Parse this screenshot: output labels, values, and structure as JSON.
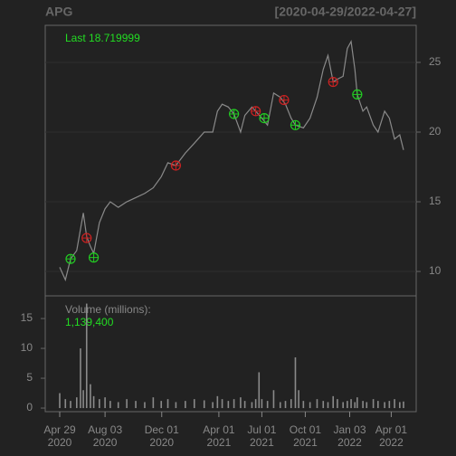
{
  "chart_data": [
    {
      "type": "line",
      "title": "APG",
      "subtitle": "[2020-04-29/2022-04-27]",
      "annotation": "Last 18.719999",
      "x": [
        "2020-04-29",
        "2020-05-11",
        "2020-05-22",
        "2020-06-04",
        "2020-06-18",
        "2020-06-25",
        "2020-07-03",
        "2020-07-10",
        "2020-07-22",
        "2020-08-03",
        "2020-08-14",
        "2020-08-31",
        "2020-09-18",
        "2020-10-07",
        "2020-10-26",
        "2020-11-13",
        "2020-11-30",
        "2020-12-14",
        "2020-12-31",
        "2021-01-20",
        "2021-02-08",
        "2021-03-01",
        "2021-03-19",
        "2021-03-29",
        "2021-04-08",
        "2021-04-21",
        "2021-05-03",
        "2021-05-17",
        "2021-05-26",
        "2021-06-10",
        "2021-06-18",
        "2021-07-01",
        "2021-07-13",
        "2021-07-26",
        "2021-08-09",
        "2021-08-20",
        "2021-09-01",
        "2021-09-10",
        "2021-09-27",
        "2021-10-11",
        "2021-10-26",
        "2021-11-08",
        "2021-11-18",
        "2021-11-29",
        "2021-12-08",
        "2021-12-20",
        "2021-12-29",
        "2022-01-06",
        "2022-01-14",
        "2022-01-19",
        "2022-01-31",
        "2022-02-08",
        "2022-02-22",
        "2022-03-04",
        "2022-03-18",
        "2022-03-28",
        "2022-04-08",
        "2022-04-19",
        "2022-04-27"
      ],
      "series": [
        {
          "name": "APG",
          "color": "#8a8a8a",
          "values": [
            10.3,
            9.4,
            10.9,
            11.5,
            14.2,
            12.5,
            11.8,
            11.3,
            13.5,
            14.5,
            15.0,
            14.6,
            15.0,
            15.3,
            15.6,
            16.0,
            16.8,
            17.8,
            17.6,
            18.5,
            19.2,
            20.0,
            20.0,
            21.5,
            22.0,
            21.8,
            21.3,
            20.0,
            21.2,
            21.8,
            21.5,
            21.0,
            20.5,
            22.8,
            22.5,
            22.0,
            21.0,
            20.5,
            20.3,
            21.0,
            22.5,
            24.5,
            25.5,
            23.6,
            23.8,
            24.0,
            26.0,
            26.5,
            24.5,
            22.7,
            21.5,
            21.8,
            20.5,
            20.0,
            21.5,
            21.0,
            19.5,
            19.8,
            18.72
          ]
        }
      ],
      "signals": [
        {
          "color": "#22cc22",
          "x": [
            "2020-05-22",
            "2020-07-10",
            "2021-05-03",
            "2021-07-06",
            "2021-09-10",
            "2022-01-19"
          ],
          "values": [
            10.9,
            11.0,
            21.3,
            21.0,
            20.5,
            22.7
          ]
        },
        {
          "color": "#cc2222",
          "x": [
            "2020-06-25",
            "2020-12-31",
            "2021-06-18",
            "2021-08-17",
            "2021-11-29"
          ],
          "values": [
            12.4,
            17.6,
            21.5,
            22.3,
            23.6
          ]
        }
      ],
      "xlim": [
        "2020-04-29",
        "2022-04-27"
      ],
      "ylim": [
        8.25,
        27.66
      ],
      "yticks": [
        10,
        15,
        20,
        25
      ],
      "grid": true
    },
    {
      "type": "bar",
      "title": "Volume (millions):",
      "annotation": "1,139,400",
      "color": "#8a8a8a",
      "x": [
        "2020-04-29",
        "2020-05-11",
        "2020-05-22",
        "2020-06-04",
        "2020-06-12",
        "2020-06-18",
        "2020-06-25",
        "2020-07-03",
        "2020-07-10",
        "2020-07-22",
        "2020-08-03",
        "2020-08-14",
        "2020-08-31",
        "2020-09-18",
        "2020-10-07",
        "2020-10-26",
        "2020-11-13",
        "2020-11-30",
        "2020-12-14",
        "2020-12-31",
        "2021-01-20",
        "2021-02-08",
        "2021-03-01",
        "2021-03-19",
        "2021-03-29",
        "2021-04-08",
        "2021-04-21",
        "2021-05-03",
        "2021-05-17",
        "2021-05-26",
        "2021-06-10",
        "2021-06-18",
        "2021-06-25",
        "2021-07-01",
        "2021-07-13",
        "2021-07-26",
        "2021-08-09",
        "2021-08-20",
        "2021-09-01",
        "2021-09-10",
        "2021-09-17",
        "2021-09-27",
        "2021-10-11",
        "2021-10-26",
        "2021-11-08",
        "2021-11-18",
        "2021-11-29",
        "2021-12-08",
        "2021-12-20",
        "2021-12-29",
        "2022-01-06",
        "2022-01-14",
        "2022-01-19",
        "2022-01-31",
        "2022-02-08",
        "2022-02-22",
        "2022-03-04",
        "2022-03-18",
        "2022-03-28",
        "2022-04-08",
        "2022-04-19",
        "2022-04-27"
      ],
      "values": [
        2.5,
        1.5,
        1.2,
        1.8,
        10.0,
        3.0,
        17.5,
        4.0,
        2.0,
        1.5,
        1.8,
        1.2,
        1.0,
        1.5,
        1.2,
        1.0,
        1.8,
        1.2,
        1.5,
        1.0,
        1.2,
        1.5,
        1.3,
        1.0,
        2.0,
        1.5,
        1.2,
        1.5,
        1.8,
        1.2,
        1.0,
        1.5,
        6.0,
        1.5,
        1.2,
        3.0,
        1.0,
        1.2,
        1.5,
        8.5,
        3.0,
        1.2,
        1.0,
        1.5,
        1.2,
        1.0,
        2.0,
        1.5,
        1.0,
        1.2,
        1.5,
        1.0,
        1.8,
        1.2,
        1.0,
        1.5,
        1.2,
        1.0,
        1.2,
        1.5,
        1.0,
        1.1
      ],
      "xlim": [
        "2020-04-29",
        "2022-04-27"
      ],
      "ylim": [
        -0.6,
        18.8
      ],
      "yticks": [
        0,
        5,
        10,
        15
      ],
      "xticks": [
        {
          "value": "2020-04-29",
          "label": [
            "Apr 29",
            "2020"
          ]
        },
        {
          "value": "2020-08-03",
          "label": [
            "Aug 03",
            "2020"
          ]
        },
        {
          "value": "2020-12-01",
          "label": [
            "Dec 01",
            "2020"
          ]
        },
        {
          "value": "2021-04-01",
          "label": [
            "Apr 01",
            "2021"
          ]
        },
        {
          "value": "2021-07-01",
          "label": [
            "Jul 01",
            "2021"
          ]
        },
        {
          "value": "2021-10-01",
          "label": [
            "Oct 01",
            "2021"
          ]
        },
        {
          "value": "2022-01-03",
          "label": [
            "Jan 03",
            "2022"
          ]
        },
        {
          "value": "2022-04-01",
          "label": [
            "Apr 01",
            "2022"
          ]
        }
      ]
    }
  ]
}
